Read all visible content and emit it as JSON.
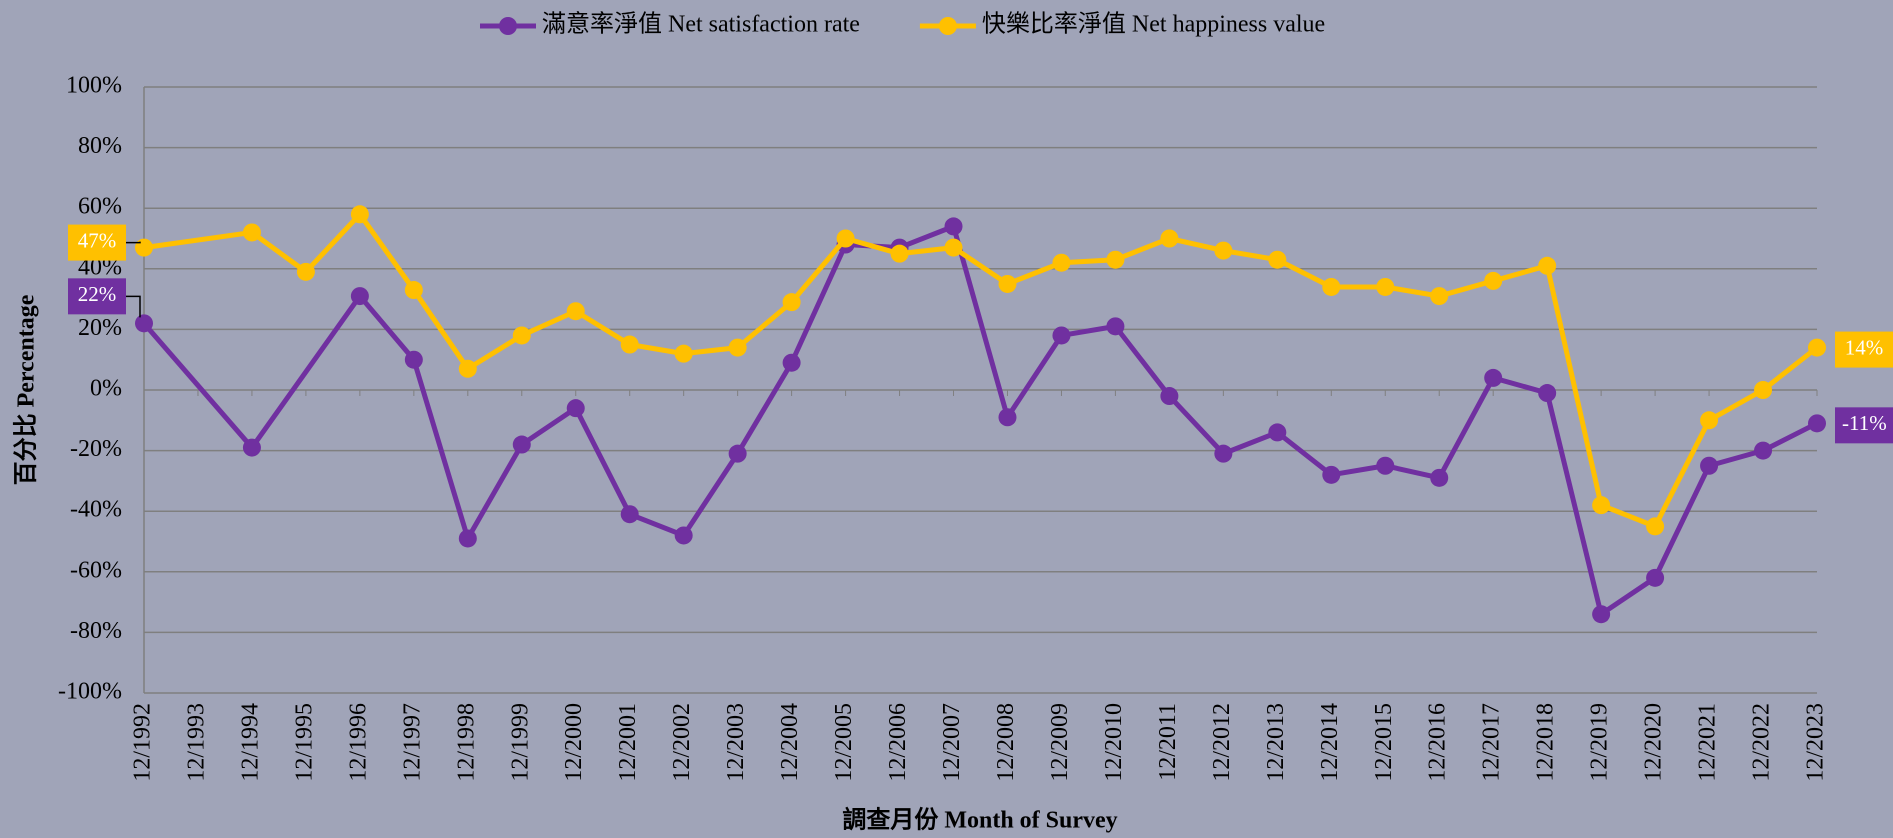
{
  "chart_data": {
    "type": "line",
    "x_label": "調查月份 Month of Survey",
    "y_label": "百分比 Percentage",
    "categories": [
      "12/1992",
      "12/1993",
      "12/1994",
      "12/1995",
      "12/1996",
      "12/1997",
      "12/1998",
      "12/1999",
      "12/2000",
      "12/2001",
      "12/2002",
      "12/2003",
      "12/2004",
      "12/2005",
      "12/2006",
      "12/2007",
      "12/2008",
      "12/2009",
      "12/2010",
      "12/2011",
      "12/2012",
      "12/2013",
      "12/2014",
      "12/2015",
      "12/2016",
      "12/2017",
      "12/2018",
      "12/2019",
      "12/2020",
      "12/2021",
      "12/2022",
      "12/2023"
    ],
    "series": [
      {
        "name": "滿意率淨值 Net satisfaction rate",
        "color": "#7030a0",
        "values": [
          22,
          null,
          -19,
          null,
          31,
          10,
          -49,
          -18,
          -6,
          -41,
          -48,
          -21,
          9,
          48,
          47,
          54,
          -9,
          18,
          21,
          -2,
          -21,
          -14,
          -28,
          -25,
          -29,
          4,
          -1,
          -74,
          -62,
          -25,
          -20,
          -11
        ],
        "value_labels": [
          "22%",
          null,
          null,
          null,
          null,
          null,
          null,
          null,
          null,
          null,
          null,
          null,
          null,
          null,
          null,
          null,
          null,
          null,
          null,
          null,
          null,
          null,
          null,
          null,
          null,
          null,
          null,
          null,
          null,
          null,
          null,
          "-11%"
        ]
      },
      {
        "name": "快樂比率淨值 Net happiness value",
        "color": "#ffc000",
        "values": [
          47,
          null,
          52,
          39,
          58,
          33,
          7,
          18,
          26,
          15,
          12,
          14,
          29,
          50,
          45,
          47,
          35,
          42,
          43,
          50,
          46,
          43,
          34,
          34,
          31,
          36,
          41,
          -38,
          -45,
          -10,
          0,
          14
        ],
        "value_labels": [
          "47%",
          null,
          null,
          null,
          null,
          null,
          null,
          null,
          null,
          null,
          null,
          null,
          null,
          null,
          null,
          null,
          null,
          null,
          null,
          null,
          null,
          null,
          null,
          null,
          null,
          null,
          null,
          null,
          null,
          null,
          null,
          "14%"
        ]
      }
    ],
    "span_gaps": true,
    "ylim": [
      -100,
      100
    ],
    "yticks": [
      {
        "value": -100,
        "label": "-100%"
      },
      {
        "value": -80,
        "label": "-80%"
      },
      {
        "value": -60,
        "label": "-60%"
      },
      {
        "value": -40,
        "label": "-40%"
      },
      {
        "value": -20,
        "label": "-20%"
      },
      {
        "value": 0,
        "label": "0%"
      },
      {
        "value": 20,
        "label": "20%"
      },
      {
        "value": 40,
        "label": "40%"
      },
      {
        "value": 60,
        "label": "60%"
      },
      {
        "value": 80,
        "label": "80%"
      },
      {
        "value": 100,
        "label": "100%"
      }
    ],
    "grid": true,
    "legend": "top"
  }
}
